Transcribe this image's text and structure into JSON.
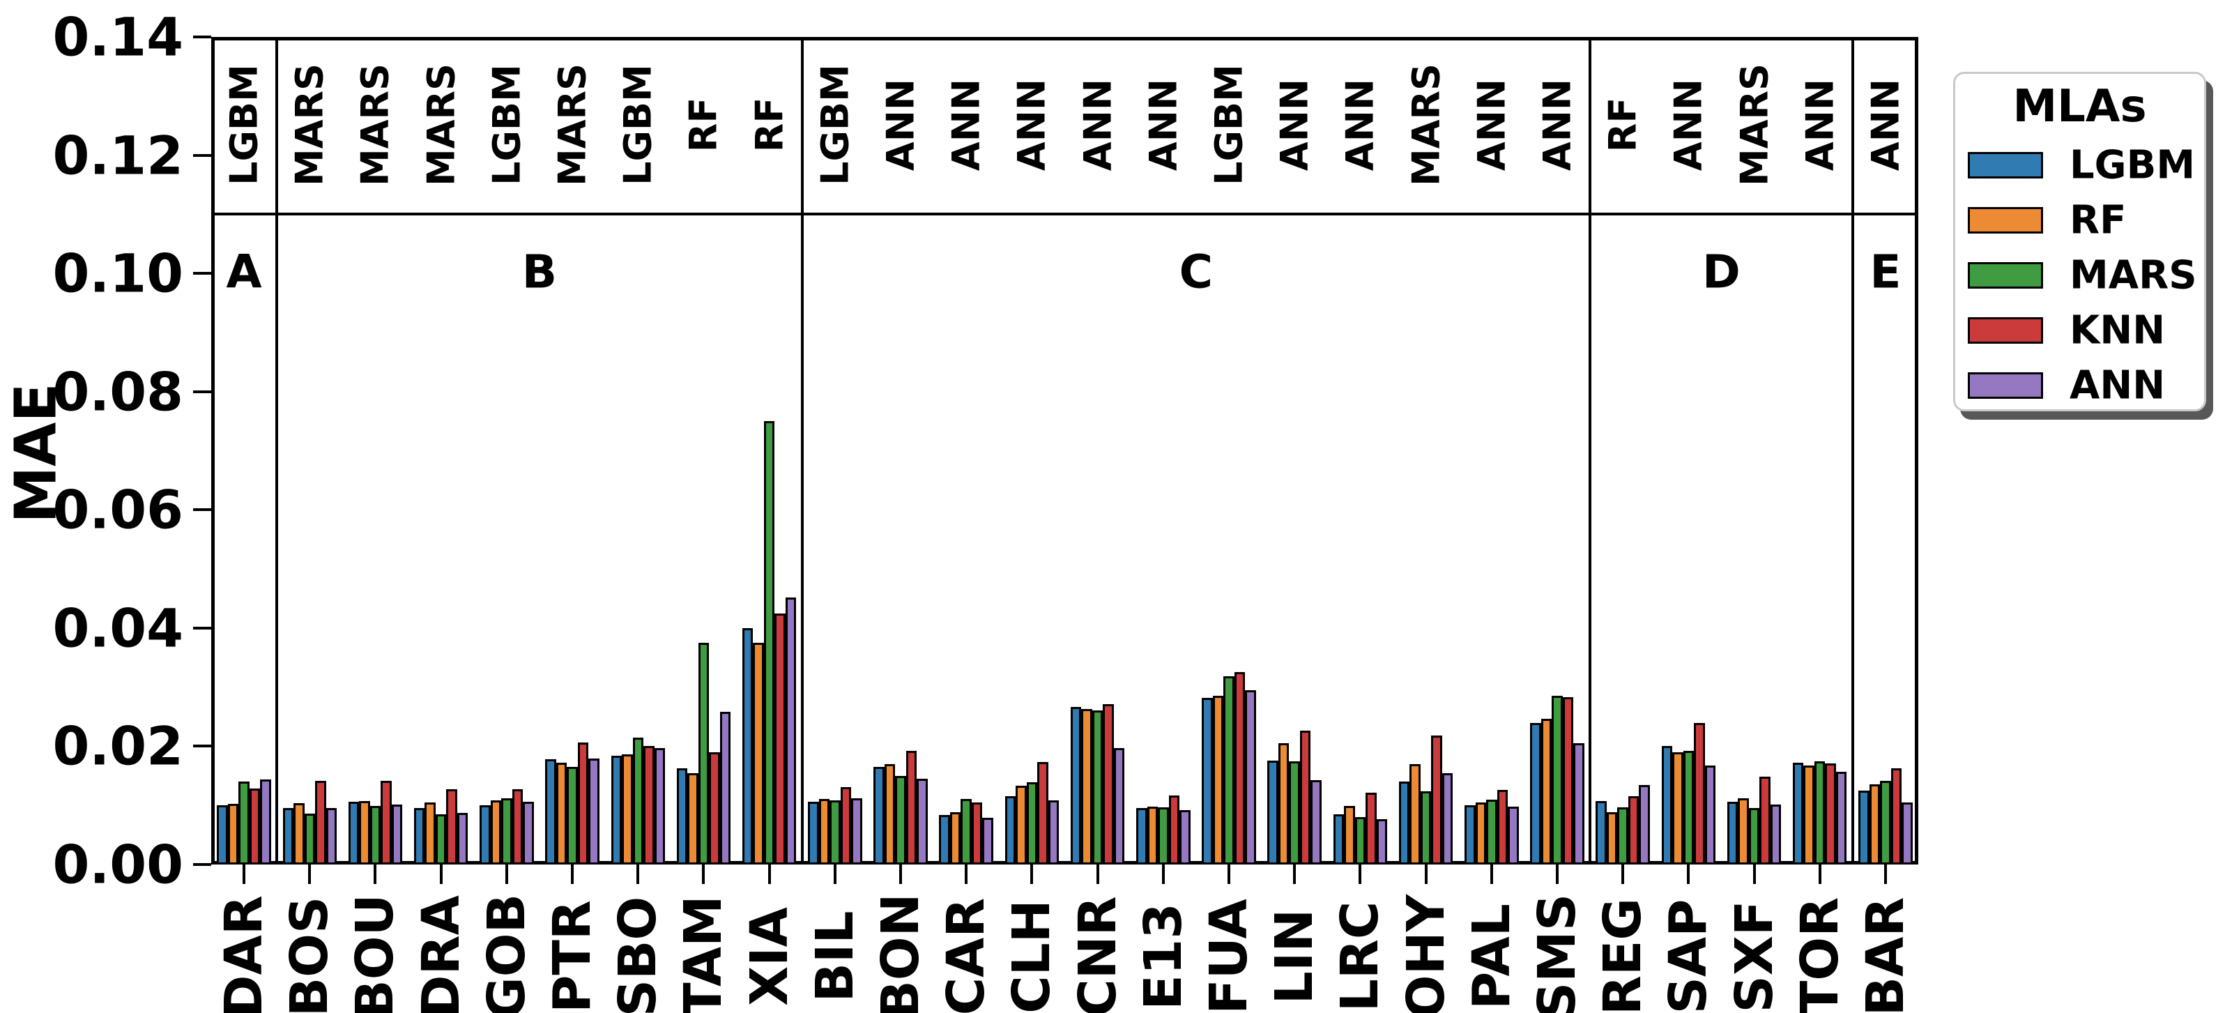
{
  "legend": {
    "title": "MLAs",
    "items": [
      {
        "label": "LGBM",
        "color": "#2f7bb2"
      },
      {
        "label": "RF",
        "color": "#ec8b33"
      },
      {
        "label": "MARS",
        "color": "#3f9c40"
      },
      {
        "label": "KNN",
        "color": "#cb3b3c"
      },
      {
        "label": "ANN",
        "color": "#9678c2"
      }
    ]
  },
  "chart_data": {
    "type": "bar",
    "title": "",
    "xlabel": "",
    "ylabel": "MAE",
    "ylim": [
      0,
      0.14
    ],
    "yticks": [
      "0.00",
      "0.02",
      "0.04",
      "0.06",
      "0.08",
      "0.10",
      "0.12",
      "0.14"
    ],
    "grid": false,
    "legend_position": "outside upper right",
    "bar_edge_color": "#000000",
    "section_divider_value": 0.11,
    "categories": [
      "DAR",
      "BOS",
      "BOU",
      "DRA",
      "GOB",
      "PTR",
      "SBO",
      "TAM",
      "XIA",
      "BIL",
      "BON",
      "CAR",
      "CLH",
      "CNR",
      "E13",
      "FUA",
      "LIN",
      "LRC",
      "OHY",
      "PAL",
      "SMS",
      "REG",
      "SAP",
      "SXF",
      "TOR",
      "BAR"
    ],
    "top_labels_best_mla": [
      "LGBM",
      "MARS",
      "MARS",
      "MARS",
      "LGBM",
      "MARS",
      "LGBM",
      "RF",
      "RF",
      "LGBM",
      "ANN",
      "ANN",
      "ANN",
      "ANN",
      "ANN",
      "LGBM",
      "ANN",
      "ANN",
      "MARS",
      "ANN",
      "ANN",
      "RF",
      "ANN",
      "MARS",
      "ANN",
      "ANN"
    ],
    "sections": [
      {
        "label": "A",
        "from": 0,
        "to": 0
      },
      {
        "label": "B",
        "from": 1,
        "to": 8
      },
      {
        "label": "C",
        "from": 9,
        "to": 20
      },
      {
        "label": "D",
        "from": 21,
        "to": 24
      },
      {
        "label": "E",
        "from": 25,
        "to": 25
      }
    ],
    "series": [
      {
        "name": "LGBM",
        "color": "#2f7bb2",
        "values": [
          0.01,
          0.0096,
          0.0106,
          0.0096,
          0.01,
          0.0178,
          0.0184,
          0.0163,
          0.04,
          0.0106,
          0.0165,
          0.0084,
          0.0115,
          0.0267,
          0.0095,
          0.0282,
          0.0176,
          0.0085,
          0.014,
          0.01,
          0.024,
          0.0107,
          0.02,
          0.0106,
          0.0172,
          0.0125
        ]
      },
      {
        "name": "RF",
        "color": "#ec8b33",
        "values": [
          0.0103,
          0.0104,
          0.0107,
          0.0105,
          0.0108,
          0.0172,
          0.0186,
          0.0155,
          0.0375,
          0.0111,
          0.017,
          0.0088,
          0.0133,
          0.0263,
          0.0098,
          0.0286,
          0.0205,
          0.0099,
          0.017,
          0.0105,
          0.0246,
          0.0089,
          0.019,
          0.0112,
          0.0167,
          0.0136
        ]
      },
      {
        "name": "MARS",
        "color": "#3f9c40",
        "values": [
          0.014,
          0.0086,
          0.0099,
          0.0085,
          0.0112,
          0.0165,
          0.0215,
          0.0375,
          0.075,
          0.0108,
          0.015,
          0.0111,
          0.0139,
          0.0261,
          0.0097,
          0.0318,
          0.0174,
          0.008,
          0.0124,
          0.011,
          0.0285,
          0.0097,
          0.0192,
          0.0096,
          0.0175,
          0.0141
        ]
      },
      {
        "name": "KNN",
        "color": "#cb3b3c",
        "values": [
          0.0129,
          0.0141,
          0.0141,
          0.0127,
          0.0127,
          0.0206,
          0.02,
          0.019,
          0.0425,
          0.0131,
          0.0192,
          0.0105,
          0.0173,
          0.0271,
          0.0117,
          0.0326,
          0.0226,
          0.0121,
          0.0218,
          0.0126,
          0.0283,
          0.0115,
          0.0239,
          0.0149,
          0.0171,
          0.0163
        ]
      },
      {
        "name": "ANN",
        "color": "#9678c2",
        "values": [
          0.0144,
          0.0095,
          0.0102,
          0.0087,
          0.0106,
          0.0179,
          0.0197,
          0.0258,
          0.0452,
          0.0112,
          0.0145,
          0.0079,
          0.0108,
          0.0197,
          0.0092,
          0.0295,
          0.0143,
          0.0077,
          0.0155,
          0.0098,
          0.0205,
          0.0135,
          0.0168,
          0.0102,
          0.0157,
          0.0105
        ]
      }
    ]
  }
}
